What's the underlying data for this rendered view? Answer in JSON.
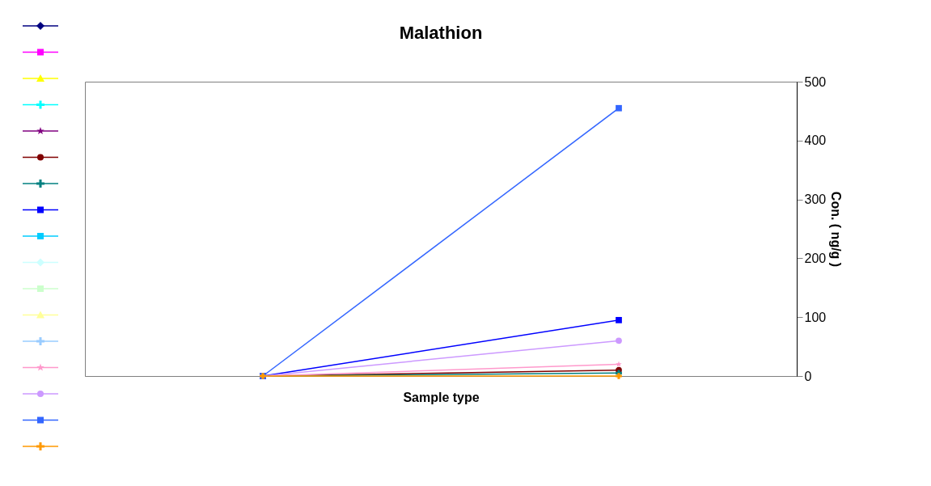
{
  "chart_data": {
    "type": "line",
    "title": "Malathion",
    "xlabel": "Sample type",
    "ylabel": "Con. ( ng/g )",
    "categories": [
      null,
      null
    ],
    "ylim": [
      0,
      500
    ],
    "yticks": [
      0,
      100,
      200,
      300,
      400,
      500
    ],
    "grid": false,
    "series": [
      {
        "color": "#000080",
        "marker": "diamond",
        "values": [
          null,
          null
        ]
      },
      {
        "color": "#ff00ff",
        "marker": "square",
        "values": [
          null,
          null
        ]
      },
      {
        "color": "#ffff00",
        "marker": "triangle",
        "values": [
          null,
          null
        ]
      },
      {
        "color": "#00ffff",
        "marker": "cross",
        "values": [
          null,
          null
        ]
      },
      {
        "color": "#800080",
        "marker": "star",
        "values": [
          null,
          null
        ]
      },
      {
        "color": "#800000",
        "marker": "circle",
        "values": [
          0,
          10
        ]
      },
      {
        "color": "#008080",
        "marker": "cross",
        "values": [
          0,
          5
        ]
      },
      {
        "color": "#0000ff",
        "marker": "square",
        "values": [
          0,
          95
        ]
      },
      {
        "color": "#00ccff",
        "marker": "square",
        "values": [
          null,
          null
        ]
      },
      {
        "color": "#ccffff",
        "marker": "diamond",
        "values": [
          null,
          null
        ]
      },
      {
        "color": "#ccffcc",
        "marker": "square",
        "values": [
          null,
          null
        ]
      },
      {
        "color": "#ffff99",
        "marker": "triangle",
        "values": [
          null,
          null
        ]
      },
      {
        "color": "#99ccff",
        "marker": "cross",
        "values": [
          null,
          null
        ]
      },
      {
        "color": "#ff99cc",
        "marker": "star",
        "values": [
          0,
          20
        ]
      },
      {
        "color": "#cc99ff",
        "marker": "circle",
        "values": [
          0,
          60
        ]
      },
      {
        "color": "#3366ff",
        "marker": "square",
        "values": [
          0,
          455
        ]
      },
      {
        "color": "#ff9900",
        "marker": "cross",
        "values": [
          0,
          0
        ]
      }
    ]
  }
}
